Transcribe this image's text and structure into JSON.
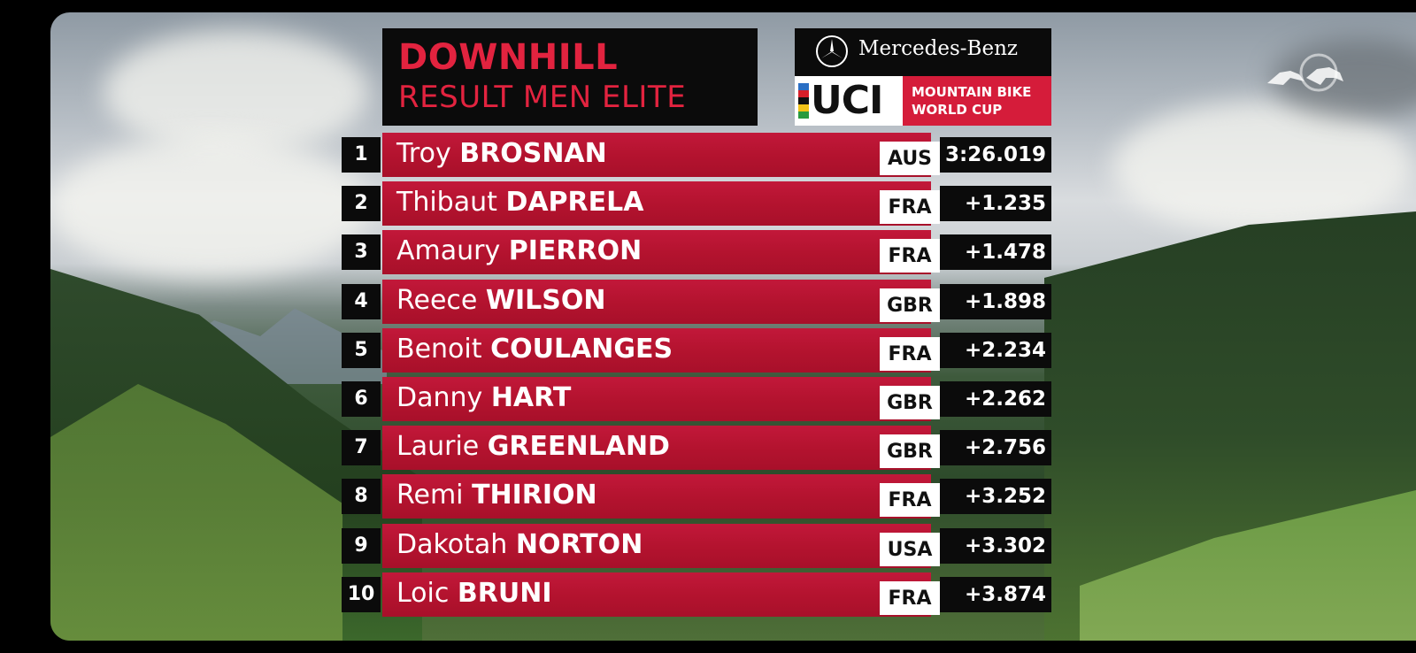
{
  "header": {
    "title": "DOWNHILL",
    "subtitle": "RESULT MEN ELITE"
  },
  "sponsor": {
    "mercedes": "Mercedes-Benz",
    "uci": "UCI",
    "series_line1": "MOUNTAIN BIKE",
    "series_line2": "WORLD CUP"
  },
  "colors": {
    "accent_red": "#d51c3a",
    "panel_black": "#0b0b0b"
  },
  "icons": [
    "mercedes-star-icon",
    "red-bull-logo-icon"
  ],
  "results": [
    {
      "rank": "1",
      "first": "Troy",
      "last": "BROSNAN",
      "nation": "AUS",
      "time": "3:26.019"
    },
    {
      "rank": "2",
      "first": "Thibaut",
      "last": "DAPRELA",
      "nation": "FRA",
      "time": "+1.235"
    },
    {
      "rank": "3",
      "first": "Amaury",
      "last": "PIERRON",
      "nation": "FRA",
      "time": "+1.478"
    },
    {
      "rank": "4",
      "first": "Reece",
      "last": "WILSON",
      "nation": "GBR",
      "time": "+1.898"
    },
    {
      "rank": "5",
      "first": "Benoit",
      "last": "COULANGES",
      "nation": "FRA",
      "time": "+2.234"
    },
    {
      "rank": "6",
      "first": "Danny",
      "last": "HART",
      "nation": "GBR",
      "time": "+2.262"
    },
    {
      "rank": "7",
      "first": "Laurie",
      "last": "GREENLAND",
      "nation": "GBR",
      "time": "+2.756"
    },
    {
      "rank": "8",
      "first": "Remi",
      "last": "THIRION",
      "nation": "FRA",
      "time": "+3.252"
    },
    {
      "rank": "9",
      "first": "Dakotah",
      "last": "NORTON",
      "nation": "USA",
      "time": "+3.302"
    },
    {
      "rank": "10",
      "first": "Loic",
      "last": "BRUNI",
      "nation": "FRA",
      "time": "+3.874"
    }
  ]
}
